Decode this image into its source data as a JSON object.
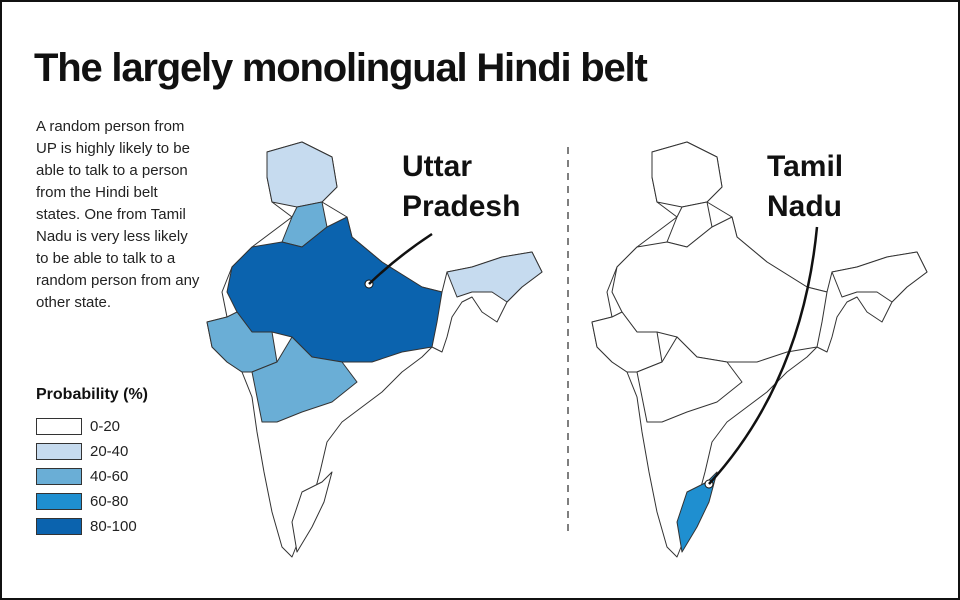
{
  "title": "The largely monolingual Hindi belt",
  "description": "A random person from UP is highly likely to be able to talk to a person from the Hindi belt states. One from Tamil Nadu is very less likely to be able to talk to a random person from any other state.",
  "legend": {
    "title": "Probability (%)",
    "items": [
      {
        "label": "0-20",
        "color": "#ffffff"
      },
      {
        "label": "20-40",
        "color": "#c6dbef"
      },
      {
        "label": "40-60",
        "color": "#6aaed6"
      },
      {
        "label": "60-80",
        "color": "#1f8fd0"
      },
      {
        "label": "80-100",
        "color": "#0b63ae"
      }
    ]
  },
  "maps": [
    {
      "label": [
        "Uttar",
        "Pradesh"
      ]
    },
    {
      "label": [
        "Tamil",
        "Nadu"
      ]
    }
  ]
}
